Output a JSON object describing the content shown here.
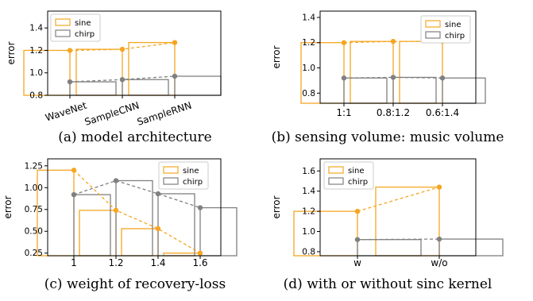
{
  "colors": {
    "sine": "#f5a623",
    "chirp": "#808080",
    "axis": "#000000"
  },
  "chart_data": [
    {
      "type": "bar",
      "caption": "(a) model architecture",
      "ylabel": "error",
      "categories": [
        "WaveNet",
        "SampleCNN",
        "SampleRNN"
      ],
      "ylim": [
        0.8,
        1.55
      ],
      "yticks": [
        "0.8",
        "1.0",
        "1.2",
        "1.4"
      ],
      "ytick_values": [
        0.8,
        1.0,
        1.2,
        1.4
      ],
      "xtick_rotation": -18,
      "legend_position": "top-left",
      "series": [
        {
          "name": "sine",
          "values": [
            1.2,
            1.21,
            1.27
          ]
        },
        {
          "name": "chirp",
          "values": [
            0.92,
            0.94,
            0.97
          ]
        }
      ]
    },
    {
      "type": "bar",
      "caption": "(b) sensing volume: music volume",
      "ylabel": "error",
      "categories": [
        "1:1",
        "0.8:1.2",
        "0.6:1.4"
      ],
      "ylim": [
        0.72,
        1.45
      ],
      "yticks": [
        "0.8",
        "1.0",
        "1.2",
        "1.4"
      ],
      "ytick_values": [
        0.8,
        1.0,
        1.2,
        1.4
      ],
      "xtick_rotation": 0,
      "legend_position": "top-right",
      "series": [
        {
          "name": "sine",
          "values": [
            1.2,
            1.21,
            1.21
          ]
        },
        {
          "name": "chirp",
          "values": [
            0.92,
            0.925,
            0.92
          ]
        }
      ]
    },
    {
      "type": "bar",
      "caption": "(c) weight of recovery-loss",
      "ylabel": "error",
      "categories": [
        "1",
        "1.2",
        "1.4",
        "1.6"
      ],
      "ylim": [
        0.22,
        1.33
      ],
      "yticks": [
        "0.25",
        "0.50",
        "0.75",
        "1.00",
        "1.25"
      ],
      "ytick_values": [
        0.25,
        0.5,
        0.75,
        1.0,
        1.25
      ],
      "xtick_rotation": 0,
      "legend_position": "top-right",
      "series": [
        {
          "name": "sine",
          "values": [
            1.2,
            0.74,
            0.53,
            0.25
          ]
        },
        {
          "name": "chirp",
          "values": [
            0.92,
            1.08,
            0.93,
            0.77
          ]
        }
      ]
    },
    {
      "type": "bar",
      "caption": "(d) with or without sinc kernel",
      "ylabel": "error",
      "categories": [
        "w",
        "w/o"
      ],
      "ylim": [
        0.76,
        1.72
      ],
      "yticks": [
        "0.8",
        "1.0",
        "1.2",
        "1.4",
        "1.6"
      ],
      "ytick_values": [
        0.8,
        1.0,
        1.2,
        1.4,
        1.6
      ],
      "xtick_rotation": 0,
      "legend_position": "top-left",
      "series": [
        {
          "name": "sine",
          "values": [
            1.2,
            1.44
          ]
        },
        {
          "name": "chirp",
          "values": [
            0.92,
            0.925
          ]
        }
      ]
    }
  ]
}
